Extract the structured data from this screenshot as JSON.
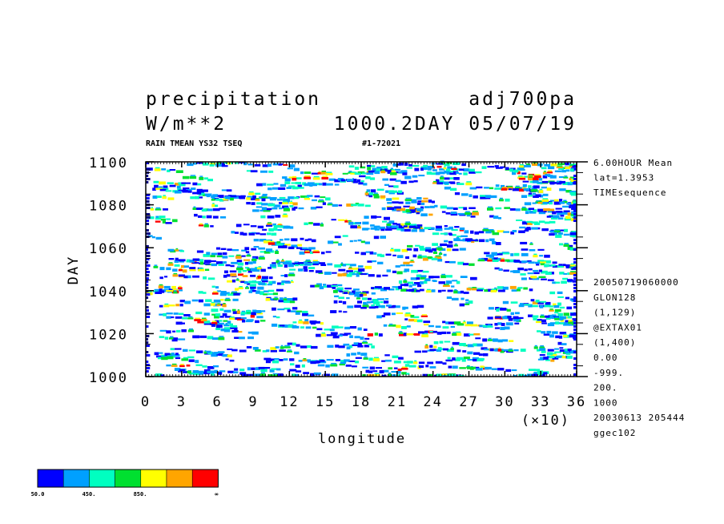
{
  "header": {
    "title_left": "precipitation",
    "title_right": "adj700pa",
    "units": "W/m**2",
    "run_info": "1000.2DAY 05/07/19",
    "subtitle_left": "RAIN TMEAN YS32 TSEQ",
    "subtitle_right": "#1-72021"
  },
  "side_info": {
    "top": [
      "6.00HOUR Mean",
      "lat=1.3953",
      "TIMEsequence"
    ],
    "bottom": [
      "20050719060000",
      "GLON128",
      "(1,129)",
      "@EXTAX01",
      "(1,400)",
      "0.00",
      "-999.",
      "200.",
      "1000",
      "20030613 205444",
      "ggec102"
    ]
  },
  "colorbar": {
    "colors": [
      "#0000ff",
      "#00a0ff",
      "#00ffc0",
      "#00e030",
      "#ffff00",
      "#ffa500",
      "#ff0000"
    ],
    "labels": [
      "50.0",
      "450.",
      "850.",
      "∞"
    ]
  },
  "chart_data": {
    "type": "heatmap",
    "xlabel": "longitude",
    "ylabel": "DAY",
    "x_multiplier": "(×10)",
    "xlim": [
      0,
      36
    ],
    "ylim": [
      1000,
      1100
    ],
    "x_ticks": [
      "0",
      "3",
      "6",
      "9",
      "12",
      "15",
      "18",
      "21",
      "24",
      "27",
      "30",
      "33",
      "36"
    ],
    "y_ticks": [
      "1000",
      "1020",
      "1040",
      "1060",
      "1080",
      "1100"
    ],
    "contour_levels": [
      50,
      250,
      450,
      650,
      850,
      1050,
      1250
    ],
    "grid": false,
    "legend": "bottom-left"
  }
}
